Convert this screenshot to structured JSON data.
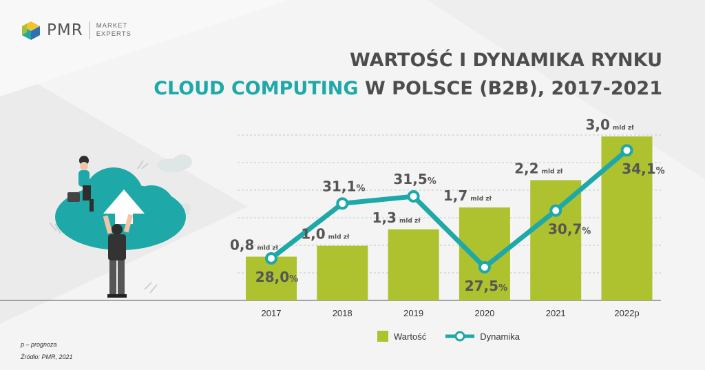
{
  "brand": {
    "name": "PMR",
    "tagline_line1": "MARKET",
    "tagline_line2": "EXPERTS"
  },
  "title": {
    "line1": "WARTOŚĆ I DYNAMIKA RYNKU",
    "line2_accent": "CLOUD COMPUTING",
    "line2_rest": " W POLSCE (B2B), 2017-2021"
  },
  "footnotes": {
    "forecast": "p – prognoza",
    "source": "Źródło: PMR, 2021"
  },
  "colors": {
    "bar": "#aec12e",
    "line": "#1ea8a8",
    "accent_title": "#1ea8a8",
    "text": "#4d4d4d"
  },
  "legend": {
    "bars": "Wartość",
    "line": "Dynamika"
  },
  "chart_data": {
    "type": "bar",
    "categories": [
      "2017",
      "2018",
      "2019",
      "2020",
      "2021",
      "2022p"
    ],
    "series": [
      {
        "name": "Wartość",
        "type": "bar",
        "values": [
          0.8,
          1.0,
          1.3,
          1.7,
          2.2,
          3.0
        ],
        "labels": [
          "0,8",
          "1,0",
          "1,3",
          "1,7",
          "2,2",
          "3,0"
        ],
        "unit": "mld zł"
      },
      {
        "name": "Dynamika",
        "type": "line",
        "values": [
          28.0,
          31.1,
          31.5,
          27.5,
          30.7,
          34.1
        ],
        "labels": [
          "28,0",
          "31,1",
          "31,5",
          "27,5",
          "30,7",
          "34,1"
        ],
        "unit": "%"
      }
    ],
    "grid": true,
    "legend_position": "bottom"
  }
}
